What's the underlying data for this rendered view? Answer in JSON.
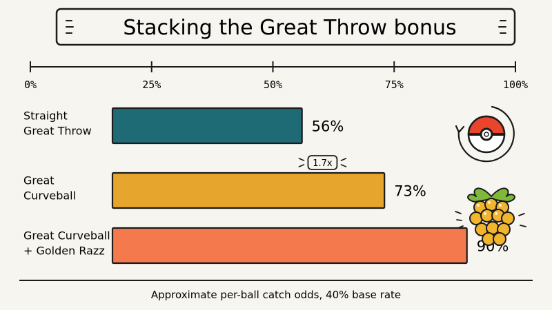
{
  "chart_data": {
    "type": "bar",
    "orientation": "horizontal",
    "title": "Stacking the Great Throw bonus",
    "caption": "Approximate per-ball catch odds, 40% base rate",
    "categories": [
      [
        "Straight",
        "Great Throw"
      ],
      [
        "Great",
        "Curveball"
      ],
      [
        "Great Curveball",
        "+ Golden Razz"
      ]
    ],
    "values": [
      56,
      73,
      90
    ],
    "value_labels": [
      "56%",
      "73%",
      "90%"
    ],
    "xlim": [
      0,
      100
    ],
    "ticks": [
      0,
      25,
      50,
      75,
      100
    ],
    "tick_labels": [
      "0%",
      "25%",
      "50%",
      "75%",
      "100%"
    ],
    "axis_position": "top",
    "grid": false,
    "legend": "none",
    "colors": [
      "#1f6b75",
      "#e6a52c",
      "#f47a4e"
    ],
    "annotation": {
      "label": "1.7x",
      "between": [
        0,
        1
      ]
    },
    "icons": [
      "pokeball-icon",
      "golden-razz-berry-icon"
    ]
  }
}
